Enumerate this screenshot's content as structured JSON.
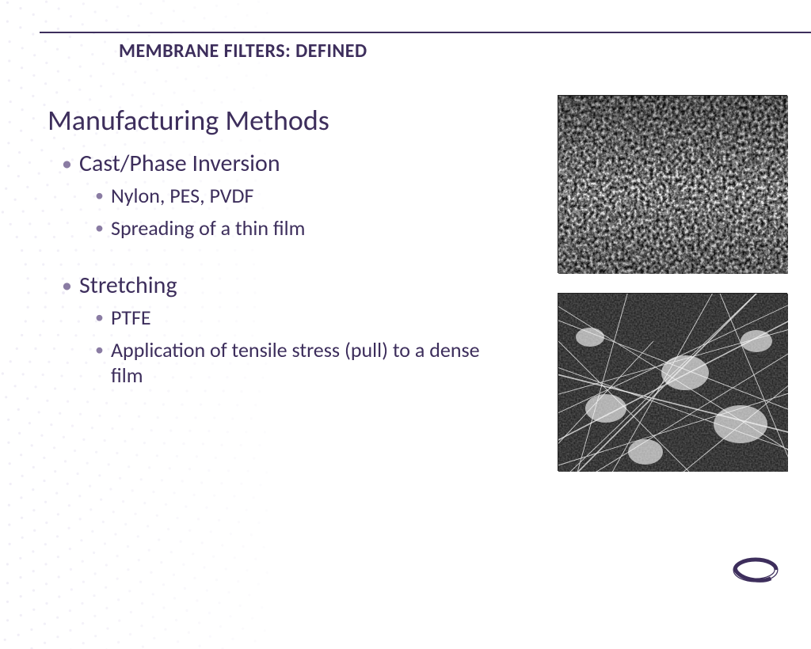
{
  "colors": {
    "accent": "#3d2e5c",
    "bullet": "#8a7ca3",
    "rule": "#3d2e5c",
    "bg": "#ffffff",
    "deco_dot": "#b9aed1"
  },
  "slide_title": "MEMBRANE FILTERS: DEFINED",
  "heading": "Manufacturing Methods",
  "section1": {
    "title": "Cast/Phase Inversion",
    "items": [
      "Nylon, PES, PVDF",
      "Spreading of a thin film"
    ]
  },
  "section2": {
    "title": "Stretching",
    "items": [
      "PTFE",
      "Application of tensile stress (pull) to a dense film"
    ]
  },
  "images": {
    "top": {
      "semantic": "sem-micrograph-cast-membrane",
      "type": "grayscale-noise"
    },
    "bottom": {
      "semantic": "sem-micrograph-stretched-ptfe",
      "type": "grayscale-fibers"
    }
  },
  "typography": {
    "title_fontsize": 24,
    "heading_fontsize": 36,
    "lvl1_fontsize": 30,
    "lvl2_fontsize": 26
  }
}
